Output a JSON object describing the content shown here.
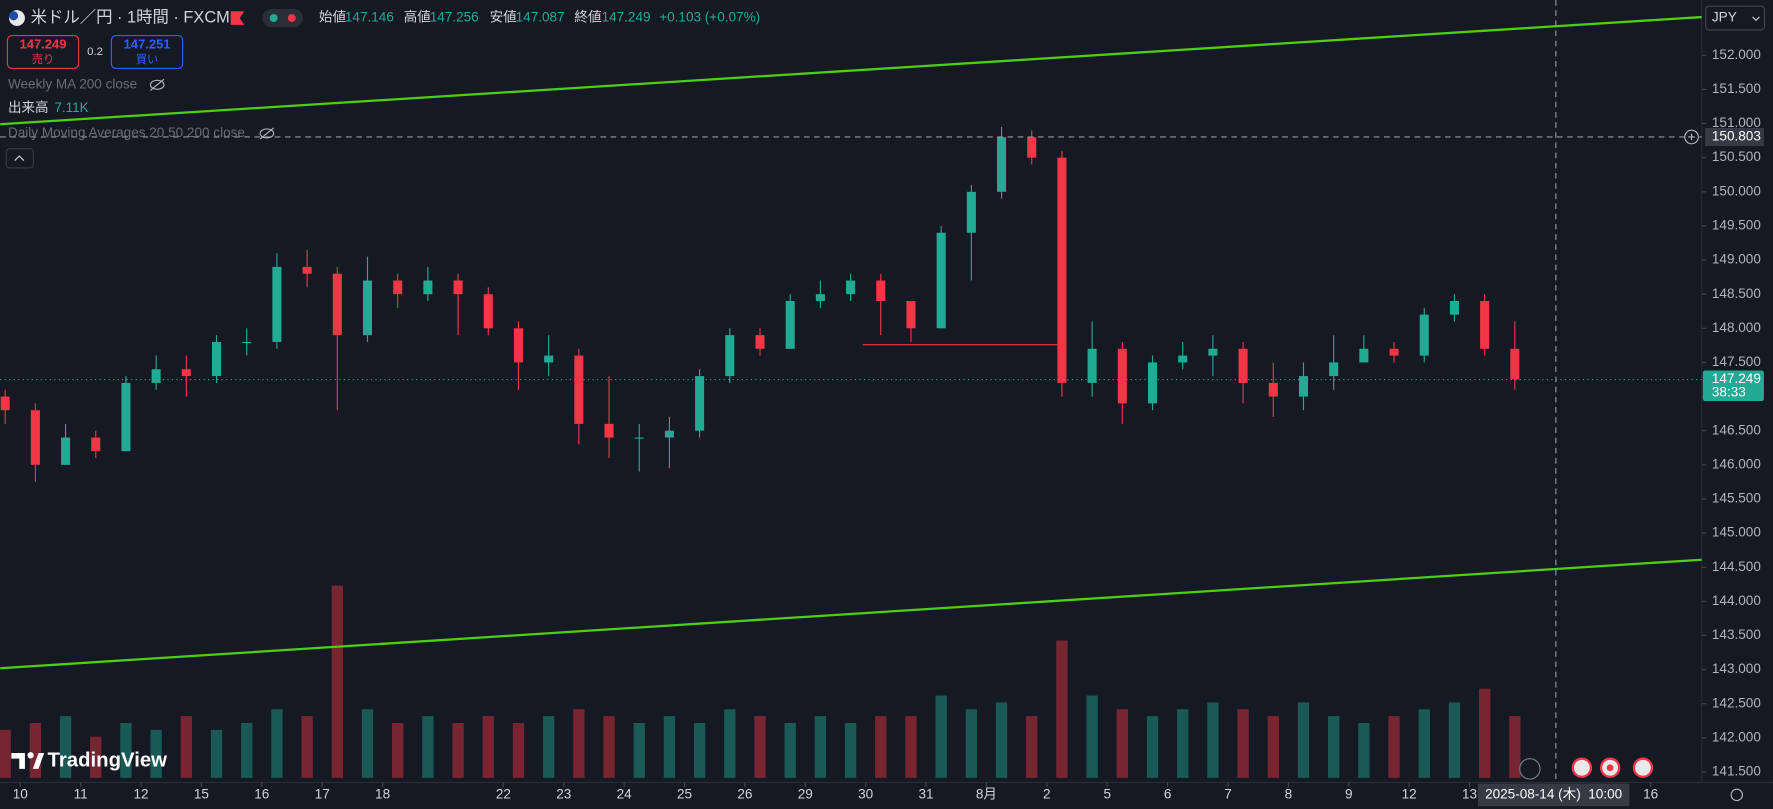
{
  "header": {
    "symbol": "米ドル／円 · 1時間 · FXCM",
    "open_label": "始値",
    "open": 147.146,
    "high_label": "高値",
    "high": 147.256,
    "low_label": "安値",
    "low": 147.087,
    "close_label": "終値",
    "close": 147.249,
    "change": "+0.103 (+0.07%)"
  },
  "order": {
    "sell_price": 147.249,
    "sell_label": "売り",
    "spread": 0.2,
    "buy_price": 147.251,
    "buy_label": "買い"
  },
  "indicators": {
    "weekly_ma": "Weekly MA 200 close",
    "volume_label": "出来高",
    "volume_value": "7.11K",
    "daily_ma": "Daily Moving Averages 20 50 200 close"
  },
  "currency": "JPY",
  "brand": "TradingView",
  "chart_data": {
    "type": "candlestick",
    "up_color": "#22ab94",
    "down_color": "#f23645",
    "open": [
      147.0,
      146.8,
      146.0,
      146.4,
      146.2,
      147.2,
      147.4,
      147.3,
      147.8,
      147.8,
      148.9,
      148.8,
      147.9,
      148.7,
      148.5,
      148.7,
      148.5,
      148.0,
      147.5,
      147.6,
      146.6,
      146.4,
      146.4,
      146.5,
      147.3,
      147.9,
      147.7,
      148.4,
      148.5,
      148.7,
      148.4,
      148.0,
      149.4,
      150.0,
      150.8,
      150.5,
      147.2,
      147.7,
      146.9,
      147.5,
      147.6,
      147.7,
      147.2,
      147.0,
      147.3,
      147.5,
      147.7,
      147.6,
      148.2,
      148.4,
      147.7
    ],
    "high": [
      147.1,
      146.9,
      146.6,
      146.5,
      147.3,
      147.6,
      147.6,
      147.9,
      148.0,
      149.1,
      149.15,
      148.9,
      149.05,
      148.8,
      148.9,
      148.8,
      148.6,
      148.1,
      147.9,
      147.7,
      147.3,
      146.6,
      146.7,
      147.4,
      148.0,
      148.0,
      148.5,
      148.7,
      148.8,
      148.8,
      148.4,
      149.5,
      150.1,
      150.95,
      150.9,
      150.6,
      148.1,
      147.8,
      147.6,
      147.8,
      147.9,
      147.8,
      147.5,
      147.5,
      147.9,
      147.9,
      147.8,
      148.3,
      148.5,
      148.5,
      148.1
    ],
    "low": [
      146.6,
      145.75,
      146.0,
      146.1,
      146.2,
      147.1,
      147.0,
      147.2,
      147.6,
      147.7,
      148.6,
      146.8,
      147.8,
      148.3,
      148.4,
      147.9,
      147.9,
      147.1,
      147.3,
      146.3,
      146.1,
      145.9,
      145.95,
      146.4,
      147.2,
      147.6,
      147.7,
      148.3,
      148.4,
      147.9,
      147.8,
      148.0,
      148.7,
      149.9,
      150.4,
      147.0,
      147.0,
      146.6,
      146.8,
      147.4,
      147.3,
      146.9,
      146.7,
      146.8,
      147.1,
      147.5,
      147.5,
      147.5,
      148.1,
      147.6,
      147.1
    ],
    "close": [
      146.8,
      146.0,
      146.4,
      146.2,
      147.2,
      147.4,
      147.3,
      147.8,
      147.8,
      148.9,
      148.8,
      147.9,
      148.7,
      148.5,
      148.7,
      148.5,
      148.0,
      147.5,
      147.6,
      146.6,
      146.4,
      146.4,
      146.5,
      147.3,
      147.9,
      147.7,
      148.4,
      148.5,
      148.7,
      148.4,
      148.0,
      149.4,
      150.0,
      150.8,
      150.5,
      147.2,
      147.7,
      146.9,
      147.5,
      147.6,
      147.7,
      147.2,
      147.0,
      147.3,
      147.5,
      147.7,
      147.6,
      148.2,
      148.4,
      147.7,
      147.25
    ],
    "volume": [
      7,
      8,
      9,
      6,
      8,
      7,
      9,
      7,
      8,
      10,
      9,
      28,
      10,
      8,
      9,
      8,
      9,
      8,
      9,
      10,
      9,
      8,
      9,
      8,
      10,
      9,
      8,
      9,
      8,
      9,
      9,
      12,
      10,
      11,
      9,
      20,
      12,
      10,
      9,
      10,
      11,
      10,
      9,
      11,
      9,
      8,
      9,
      10,
      11,
      13,
      9
    ],
    "xlim": [
      -0.17,
      56.19
    ],
    "ylim": [
      141.38,
      152.81
    ],
    "xticks": [
      {
        "value": 0.5,
        "label": "10"
      },
      {
        "value": 2.5,
        "label": "11"
      },
      {
        "value": 4.5,
        "label": "12"
      },
      {
        "value": 6.5,
        "label": "15"
      },
      {
        "value": 8.5,
        "label": "16"
      },
      {
        "value": 10.5,
        "label": "17"
      },
      {
        "value": 12.5,
        "label": "18"
      },
      {
        "value": 16.5,
        "label": "22"
      },
      {
        "value": 18.5,
        "label": "23"
      },
      {
        "value": 20.5,
        "label": "24"
      },
      {
        "value": 22.5,
        "label": "25"
      },
      {
        "value": 24.5,
        "label": "26"
      },
      {
        "value": 26.5,
        "label": "29"
      },
      {
        "value": 28.5,
        "label": "30"
      },
      {
        "value": 30.5,
        "label": "31"
      },
      {
        "value": 32.5,
        "label": "8月"
      },
      {
        "value": 34.5,
        "label": "2"
      },
      {
        "value": 36.5,
        "label": "5"
      },
      {
        "value": 38.5,
        "label": "6"
      },
      {
        "value": 40.5,
        "label": "7"
      },
      {
        "value": 42.5,
        "label": "8"
      },
      {
        "value": 44.5,
        "label": "9"
      },
      {
        "value": 46.5,
        "label": "12"
      },
      {
        "value": 48.5,
        "label": "13"
      },
      {
        "value": 54.5,
        "label": "16"
      }
    ],
    "yticks": [
      {
        "value": 141.5,
        "label": "141.500"
      },
      {
        "value": 142,
        "label": "142.000"
      },
      {
        "value": 142.5,
        "label": "142.500"
      },
      {
        "value": 143,
        "label": "143.000"
      },
      {
        "value": 143.5,
        "label": "143.500"
      },
      {
        "value": 144,
        "label": "144.000"
      },
      {
        "value": 144.5,
        "label": "144.500"
      },
      {
        "value": 145,
        "label": "145.000"
      },
      {
        "value": 145.5,
        "label": "145.500"
      },
      {
        "value": 146,
        "label": "146.000"
      },
      {
        "value": 146.5,
        "label": "146.500"
      },
      {
        "value": 147,
        "label": "147.000"
      },
      {
        "value": 147.5,
        "label": "147.500"
      },
      {
        "value": 148,
        "label": "148.000"
      },
      {
        "value": 148.5,
        "label": "148.500"
      },
      {
        "value": 149,
        "label": "149.000"
      },
      {
        "value": 149.5,
        "label": "149.500"
      },
      {
        "value": 150,
        "label": "150.000"
      },
      {
        "value": 150.5,
        "label": "150.500"
      },
      {
        "value": 151,
        "label": "151.000"
      },
      {
        "value": 151.5,
        "label": "151.500"
      },
      {
        "value": 152,
        "label": "152.000"
      }
    ],
    "lines": [
      {
        "x": [
          -0.17,
          56.19
        ],
        "y": [
          150.99,
          152.56
        ],
        "color": "#4cd00f"
      },
      {
        "x": [
          -0.17,
          56.19
        ],
        "y": [
          143.02,
          144.61
        ],
        "color": "#4cd00f"
      },
      {
        "x": [
          28.4,
          34.9
        ],
        "y": [
          147.76,
          147.76
        ],
        "color": "#f23645"
      }
    ],
    "crosshair": {
      "x": 51.36,
      "price": 150.803
    },
    "crosshair_label": "2025-08-14 (木)  10:00",
    "last_price": 147.249,
    "countdown": "38:33"
  }
}
